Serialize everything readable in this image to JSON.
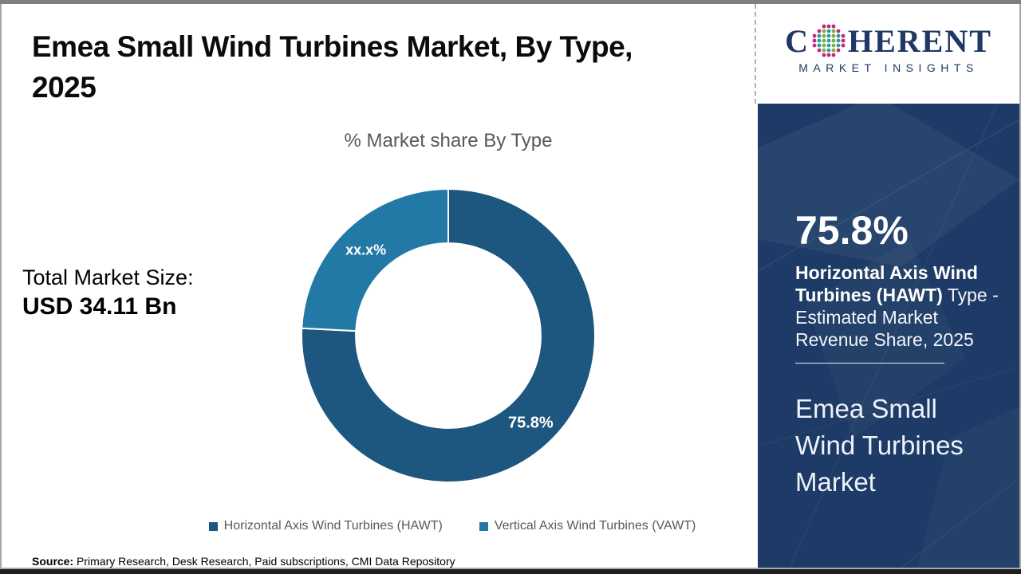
{
  "header": {
    "title_line1": "Emea Small Wind Turbines Market, By Type,",
    "title_line2": "2025"
  },
  "logo": {
    "letter_c": "C",
    "letters_rest": "HERENT",
    "tagline": "MARKET INSIGHTS",
    "colors": {
      "navy": "#1f3864",
      "globe_teal": "#2e9c9c",
      "globe_green": "#76b043",
      "globe_magenta": "#c0267e"
    }
  },
  "chart_data": {
    "type": "pie",
    "subtype": "donut",
    "title": "% Market share By Type",
    "categories": [
      "Horizontal Axis Wind Turbines (HAWT)",
      "Vertical Axis Wind Turbines (VAWT)"
    ],
    "series": [
      {
        "name": "Horizontal Axis Wind Turbines (HAWT)",
        "value": 75.8,
        "label": "75.8%",
        "color": "#1d567e"
      },
      {
        "name": "Vertical Axis Wind Turbines (VAWT)",
        "value": 24.2,
        "label": "xx.x%",
        "color": "#2379a6"
      }
    ],
    "start_angle_deg": 0,
    "direction": "clockwise",
    "inner_radius_ratio": 0.63,
    "data_labels": "inside",
    "legend_position": "bottom"
  },
  "total": {
    "label": "Total Market Size:",
    "value": "USD 34.11 Bn"
  },
  "legend": [
    {
      "label": "Horizontal Axis Wind Turbines (HAWT)",
      "color": "#1d567e"
    },
    {
      "label": "Vertical Axis Wind Turbines (VAWT)",
      "color": "#2379a6"
    }
  ],
  "source": {
    "label": "Source:",
    "text": " Primary Research, Desk Research, Paid subscriptions, CMI Data Repository"
  },
  "sidebar": {
    "panel_color": "#1d3b66",
    "stat_value": "75.8%",
    "description_lines": [
      {
        "bold": "Horizontal Axis Wind",
        "normal": ""
      },
      {
        "bold": "Turbines (HAWT)",
        "normal": " Type -"
      },
      {
        "bold": "",
        "normal": "Estimated Market"
      },
      {
        "bold": "",
        "normal": "Revenue Share, 2025"
      }
    ],
    "market_name": "Emea Small Wind Turbines Market",
    "market_name_lines": [
      "Emea Small",
      "Wind Turbines",
      "Market"
    ]
  }
}
